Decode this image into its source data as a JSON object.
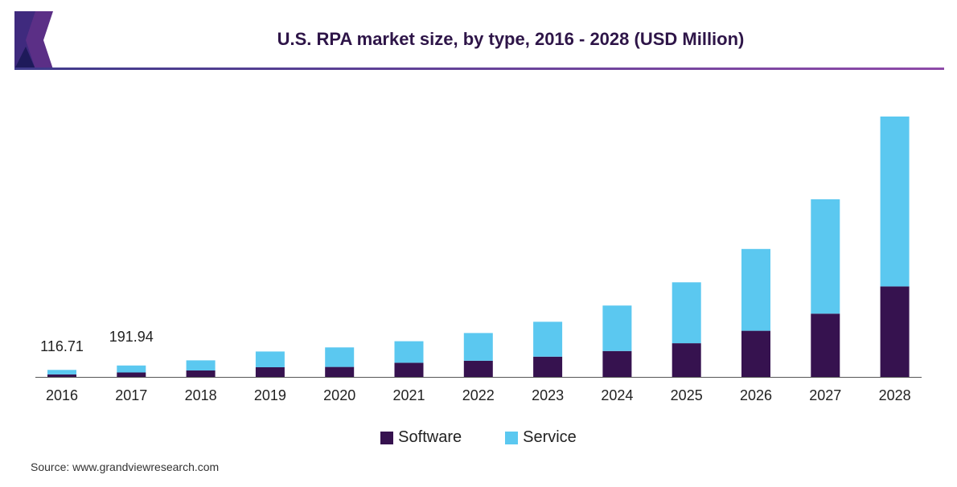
{
  "title": "U.S. RPA market size, by type, 2016 - 2028 (USD Million)",
  "source": "Source: www.grandviewresearch.com",
  "colors": {
    "software": "#36124f",
    "service": "#5bc8f0",
    "title": "#2e1548",
    "rule_left": "#3e3a8a",
    "rule_right": "#8e4aa8"
  },
  "chart_data": {
    "type": "bar",
    "stacked": true,
    "title": "U.S. RPA market size, by type, 2016 - 2028 (USD Million)",
    "categories": [
      "2016",
      "2017",
      "2018",
      "2019",
      "2020",
      "2021",
      "2022",
      "2023",
      "2024",
      "2025",
      "2026",
      "2027",
      "2028"
    ],
    "series": [
      {
        "name": "Software",
        "color": "#36124f",
        "values": [
          42,
          75,
          108,
          162,
          168,
          238,
          272,
          340,
          435,
          566,
          775,
          1063,
          1521
        ]
      },
      {
        "name": "Service",
        "color": "#5bc8f0",
        "values": [
          75,
          117,
          170,
          265,
          328,
          362,
          466,
          586,
          764,
          1024,
          1375,
          1922,
          2855
        ]
      }
    ],
    "data_labels": [
      {
        "category": "2016",
        "text": "116.71"
      },
      {
        "category": "2017",
        "text": "191.94"
      }
    ],
    "ylim": [
      0,
      4376
    ],
    "legend_position": "bottom",
    "grid": false,
    "xlabel": "",
    "ylabel": ""
  },
  "legend": [
    {
      "label": "Software",
      "color": "#36124f"
    },
    {
      "label": "Service",
      "color": "#5bc8f0"
    }
  ]
}
